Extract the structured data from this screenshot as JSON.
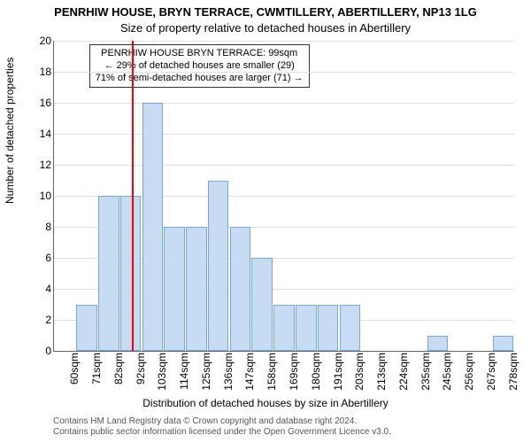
{
  "title_main": "PENRHIW HOUSE, BRYN TERRACE, CWMTILLERY, ABERTILLERY, NP13 1LG",
  "title_sub": "Size of property relative to detached houses in Abertillery",
  "ylabel": "Number of detached properties",
  "xlabel": "Distribution of detached houses by size in Abertillery",
  "footer1": "Contains HM Land Registry data © Crown copyright and database right 2024.",
  "footer2": "Contains public sector information licensed under the Open Government Licence v3.0.",
  "chart": {
    "type": "histogram",
    "background_color": "#ffffff",
    "grid_color": "#e0e0e0",
    "bar_fill": "#c7dbf2",
    "bar_border": "#7aa7d9",
    "marker_color": "#ff0000",
    "ylim": [
      0,
      20
    ],
    "ytick_step": 2,
    "bar_width": 0.95,
    "categories": [
      "60sqm",
      "71sqm",
      "82sqm",
      "92sqm",
      "103sqm",
      "114sqm",
      "125sqm",
      "136sqm",
      "147sqm",
      "158sqm",
      "169sqm",
      "180sqm",
      "191sqm",
      "203sqm",
      "213sqm",
      "224sqm",
      "235sqm",
      "245sqm",
      "256sqm",
      "267sqm",
      "278sqm"
    ],
    "values": [
      0,
      3,
      10,
      10,
      16,
      8,
      8,
      11,
      8,
      6,
      3,
      3,
      3,
      3,
      0,
      0,
      0,
      1,
      0,
      0,
      1
    ],
    "marker_x": 99,
    "x_start": 60,
    "x_step": 11
  },
  "callout": {
    "line1": "PENRHIW HOUSE BRYN TERRACE: 99sqm",
    "line2": "← 29% of detached houses are smaller (29)",
    "line3": "71% of semi-detached houses are larger (71) →"
  }
}
